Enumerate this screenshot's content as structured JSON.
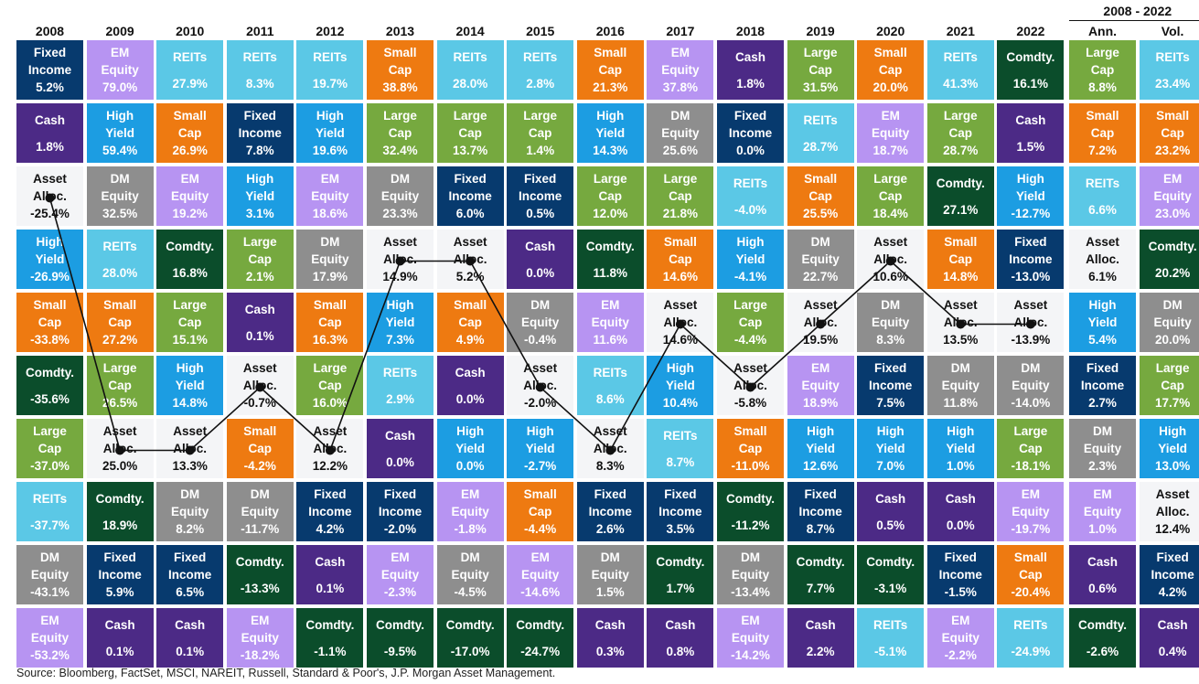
{
  "chart_data": {
    "type": "table",
    "title": "",
    "years": [
      "2008",
      "2009",
      "2010",
      "2011",
      "2012",
      "2013",
      "2014",
      "2015",
      "2016",
      "2017",
      "2018",
      "2019",
      "2020",
      "2021",
      "2022"
    ],
    "summary_group_label": "2008 - 2022",
    "summary_columns": [
      "Ann.",
      "Vol."
    ],
    "colors": {
      "Fixed Income": "#073a6e",
      "EM Equity": "#b794f2",
      "REITs": "#5bc8e6",
      "Small Cap": "#ee7a11",
      "Cash": "#4c2a86",
      "Large Cap": "#76a93f",
      "Comdty.": "#0b4d2b",
      "High Yield": "#1c9de2",
      "DM Equity": "#8e8e8e",
      "Asset Alloc.": "#f4f5f7"
    },
    "text_colors": {
      "Asset Alloc.": "#111111",
      "default": "#ffffff"
    },
    "columns": [
      [
        [
          "Fixed Income",
          "5.2%"
        ],
        [
          "Cash",
          "1.8%"
        ],
        [
          "Asset Alloc.",
          "-25.4%"
        ],
        [
          "High Yield",
          "-26.9%"
        ],
        [
          "Small Cap",
          "-33.8%"
        ],
        [
          "Comdty.",
          "-35.6%"
        ],
        [
          "Large Cap",
          "-37.0%"
        ],
        [
          "REITs",
          "-37.7%"
        ],
        [
          "DM Equity",
          "-43.1%"
        ],
        [
          "EM Equity",
          "-53.2%"
        ]
      ],
      [
        [
          "EM Equity",
          "79.0%"
        ],
        [
          "High Yield",
          "59.4%"
        ],
        [
          "DM Equity",
          "32.5%"
        ],
        [
          "REITs",
          "28.0%"
        ],
        [
          "Small Cap",
          "27.2%"
        ],
        [
          "Large Cap",
          "26.5%"
        ],
        [
          "Asset Alloc.",
          "25.0%"
        ],
        [
          "Comdty.",
          "18.9%"
        ],
        [
          "Fixed Income",
          "5.9%"
        ],
        [
          "Cash",
          "0.1%"
        ]
      ],
      [
        [
          "REITs",
          "27.9%"
        ],
        [
          "Small Cap",
          "26.9%"
        ],
        [
          "EM Equity",
          "19.2%"
        ],
        [
          "Comdty.",
          "16.8%"
        ],
        [
          "Large Cap",
          "15.1%"
        ],
        [
          "High Yield",
          "14.8%"
        ],
        [
          "Asset Alloc.",
          "13.3%"
        ],
        [
          "DM Equity",
          "8.2%"
        ],
        [
          "Fixed Income",
          "6.5%"
        ],
        [
          "Cash",
          "0.1%"
        ]
      ],
      [
        [
          "REITs",
          "8.3%"
        ],
        [
          "Fixed Income",
          "7.8%"
        ],
        [
          "High Yield",
          "3.1%"
        ],
        [
          "Large Cap",
          "2.1%"
        ],
        [
          "Cash",
          "0.1%"
        ],
        [
          "Asset Alloc.",
          "-0.7%"
        ],
        [
          "Small Cap",
          "-4.2%"
        ],
        [
          "DM Equity",
          "-11.7%"
        ],
        [
          "Comdty.",
          "-13.3%"
        ],
        [
          "EM Equity",
          "-18.2%"
        ]
      ],
      [
        [
          "REITs",
          "19.7%"
        ],
        [
          "High Yield",
          "19.6%"
        ],
        [
          "EM Equity",
          "18.6%"
        ],
        [
          "DM Equity",
          "17.9%"
        ],
        [
          "Small Cap",
          "16.3%"
        ],
        [
          "Large Cap",
          "16.0%"
        ],
        [
          "Asset Alloc.",
          "12.2%"
        ],
        [
          "Fixed Income",
          "4.2%"
        ],
        [
          "Cash",
          "0.1%"
        ],
        [
          "Comdty.",
          "-1.1%"
        ]
      ],
      [
        [
          "Small Cap",
          "38.8%"
        ],
        [
          "Large Cap",
          "32.4%"
        ],
        [
          "DM Equity",
          "23.3%"
        ],
        [
          "Asset Alloc.",
          "14.9%"
        ],
        [
          "High Yield",
          "7.3%"
        ],
        [
          "REITs",
          "2.9%"
        ],
        [
          "Cash",
          "0.0%"
        ],
        [
          "Fixed Income",
          "-2.0%"
        ],
        [
          "EM Equity",
          "-2.3%"
        ],
        [
          "Comdty.",
          "-9.5%"
        ]
      ],
      [
        [
          "REITs",
          "28.0%"
        ],
        [
          "Large Cap",
          "13.7%"
        ],
        [
          "Fixed Income",
          "6.0%"
        ],
        [
          "Asset Alloc.",
          "5.2%"
        ],
        [
          "Small Cap",
          "4.9%"
        ],
        [
          "Cash",
          "0.0%"
        ],
        [
          "High Yield",
          "0.0%"
        ],
        [
          "EM Equity",
          "-1.8%"
        ],
        [
          "DM Equity",
          "-4.5%"
        ],
        [
          "Comdty.",
          "-17.0%"
        ]
      ],
      [
        [
          "REITs",
          "2.8%"
        ],
        [
          "Large Cap",
          "1.4%"
        ],
        [
          "Fixed Income",
          "0.5%"
        ],
        [
          "Cash",
          "0.0%"
        ],
        [
          "DM Equity",
          "-0.4%"
        ],
        [
          "Asset Alloc.",
          "-2.0%"
        ],
        [
          "High Yield",
          "-2.7%"
        ],
        [
          "Small Cap",
          "-4.4%"
        ],
        [
          "EM Equity",
          "-14.6%"
        ],
        [
          "Comdty.",
          "-24.7%"
        ]
      ],
      [
        [
          "Small Cap",
          "21.3%"
        ],
        [
          "High Yield",
          "14.3%"
        ],
        [
          "Large Cap",
          "12.0%"
        ],
        [
          "Comdty.",
          "11.8%"
        ],
        [
          "EM Equity",
          "11.6%"
        ],
        [
          "REITs",
          "8.6%"
        ],
        [
          "Asset Alloc.",
          "8.3%"
        ],
        [
          "Fixed Income",
          "2.6%"
        ],
        [
          "DM Equity",
          "1.5%"
        ],
        [
          "Cash",
          "0.3%"
        ]
      ],
      [
        [
          "EM Equity",
          "37.8%"
        ],
        [
          "DM Equity",
          "25.6%"
        ],
        [
          "Large Cap",
          "21.8%"
        ],
        [
          "Small Cap",
          "14.6%"
        ],
        [
          "Asset Alloc.",
          "14.6%"
        ],
        [
          "High Yield",
          "10.4%"
        ],
        [
          "REITs",
          "8.7%"
        ],
        [
          "Fixed Income",
          "3.5%"
        ],
        [
          "Comdty.",
          "1.7%"
        ],
        [
          "Cash",
          "0.8%"
        ]
      ],
      [
        [
          "Cash",
          "1.8%"
        ],
        [
          "Fixed Income",
          "0.0%"
        ],
        [
          "REITs",
          "-4.0%"
        ],
        [
          "High Yield",
          "-4.1%"
        ],
        [
          "Large Cap",
          "-4.4%"
        ],
        [
          "Asset Alloc.",
          "-5.8%"
        ],
        [
          "Small Cap",
          "-11.0%"
        ],
        [
          "Comdty.",
          "-11.2%"
        ],
        [
          "DM Equity",
          "-13.4%"
        ],
        [
          "EM Equity",
          "-14.2%"
        ]
      ],
      [
        [
          "Large Cap",
          "31.5%"
        ],
        [
          "REITs",
          "28.7%"
        ],
        [
          "Small Cap",
          "25.5%"
        ],
        [
          "DM Equity",
          "22.7%"
        ],
        [
          "Asset Alloc.",
          "19.5%"
        ],
        [
          "EM Equity",
          "18.9%"
        ],
        [
          "High Yield",
          "12.6%"
        ],
        [
          "Fixed Income",
          "8.7%"
        ],
        [
          "Comdty.",
          "7.7%"
        ],
        [
          "Cash",
          "2.2%"
        ]
      ],
      [
        [
          "Small Cap",
          "20.0%"
        ],
        [
          "EM Equity",
          "18.7%"
        ],
        [
          "Large Cap",
          "18.4%"
        ],
        [
          "Asset Alloc.",
          "10.6%"
        ],
        [
          "DM Equity",
          "8.3%"
        ],
        [
          "Fixed Income",
          "7.5%"
        ],
        [
          "High Yield",
          "7.0%"
        ],
        [
          "Cash",
          "0.5%"
        ],
        [
          "Comdty.",
          "-3.1%"
        ],
        [
          "REITs",
          "-5.1%"
        ]
      ],
      [
        [
          "REITs",
          "41.3%"
        ],
        [
          "Large Cap",
          "28.7%"
        ],
        [
          "Comdty.",
          "27.1%"
        ],
        [
          "Small Cap",
          "14.8%"
        ],
        [
          "Asset Alloc.",
          "13.5%"
        ],
        [
          "DM Equity",
          "11.8%"
        ],
        [
          "High Yield",
          "1.0%"
        ],
        [
          "Cash",
          "0.0%"
        ],
        [
          "Fixed Income",
          "-1.5%"
        ],
        [
          "EM Equity",
          "-2.2%"
        ]
      ],
      [
        [
          "Comdty.",
          "16.1%"
        ],
        [
          "Cash",
          "1.5%"
        ],
        [
          "High Yield",
          "-12.7%"
        ],
        [
          "Fixed Income",
          "-13.0%"
        ],
        [
          "Asset Alloc.",
          "-13.9%"
        ],
        [
          "DM Equity",
          "-14.0%"
        ],
        [
          "Large Cap",
          "-18.1%"
        ],
        [
          "EM Equity",
          "-19.7%"
        ],
        [
          "Small Cap",
          "-20.4%"
        ],
        [
          "REITs",
          "-24.9%"
        ]
      ]
    ],
    "summary": [
      [
        [
          "Large Cap",
          "8.8%"
        ],
        [
          "Small Cap",
          "7.2%"
        ],
        [
          "REITs",
          "6.6%"
        ],
        [
          "Asset Alloc.",
          "6.1%"
        ],
        [
          "High Yield",
          "5.4%"
        ],
        [
          "Fixed Income",
          "2.7%"
        ],
        [
          "DM Equity",
          "2.3%"
        ],
        [
          "EM Equity",
          "1.0%"
        ],
        [
          "Cash",
          "0.6%"
        ],
        [
          "Comdty.",
          "-2.6%"
        ]
      ],
      [
        [
          "REITs",
          "23.4%"
        ],
        [
          "Small Cap",
          "23.2%"
        ],
        [
          "EM Equity",
          "23.0%"
        ],
        [
          "Comdty.",
          "20.2%"
        ],
        [
          "DM Equity",
          "20.0%"
        ],
        [
          "Large Cap",
          "17.7%"
        ],
        [
          "High Yield",
          "13.0%"
        ],
        [
          "Asset Alloc.",
          "12.4%"
        ],
        [
          "Fixed Income",
          "4.2%"
        ],
        [
          "Cash",
          "0.4%"
        ]
      ]
    ],
    "line_series": "Asset Alloc."
  },
  "source": "Source: Bloomberg, FactSet, MSCI, NAREIT, Russell, Standard & Poor's, J.P. Morgan Asset Management."
}
